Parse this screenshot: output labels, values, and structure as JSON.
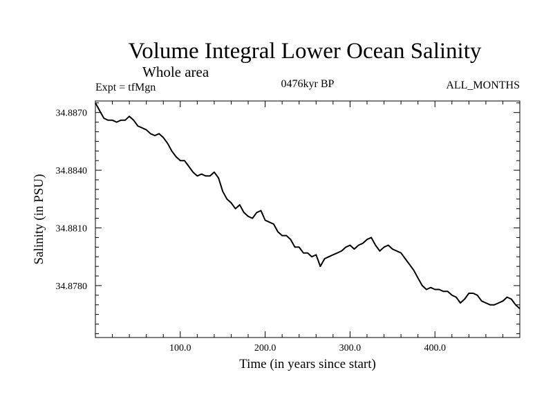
{
  "chart_data": {
    "type": "line",
    "title": "Volume Integral Lower Ocean Salinity",
    "subtitle": "Whole area",
    "annotations": {
      "left": "Expt = tfMgn",
      "center": "0476kyr BP",
      "right": "ALL_MONTHS"
    },
    "xlabel": "Time (in years since start)",
    "ylabel": "Salinity (in PSU)",
    "xlim": [
      0,
      500
    ],
    "ylim": [
      34.8753,
      34.8876
    ],
    "xticks": [
      {
        "value": 100,
        "label": "100.0"
      },
      {
        "value": 200,
        "label": "200.0"
      },
      {
        "value": 300,
        "label": "300.0"
      },
      {
        "value": 400,
        "label": "400.0"
      }
    ],
    "yticks": [
      {
        "value": 34.887,
        "label": "34.8870"
      },
      {
        "value": 34.884,
        "label": "34.8840"
      },
      {
        "value": 34.881,
        "label": "34.8810"
      },
      {
        "value": 34.878,
        "label": "34.8780"
      }
    ],
    "grid": false,
    "legend": "none",
    "line_color": "#000000",
    "series": [
      {
        "x": [
          0,
          5,
          10,
          15,
          20,
          25,
          30,
          35,
          40,
          45,
          50,
          55,
          60,
          65,
          70,
          75,
          80,
          85,
          90,
          95,
          100,
          105,
          110,
          115,
          120,
          125,
          130,
          135,
          140,
          145,
          150,
          155,
          160,
          165,
          170,
          175,
          180,
          185,
          190,
          195,
          200,
          205,
          210,
          215,
          220,
          225,
          230,
          235,
          240,
          245,
          250,
          255,
          260,
          265,
          270,
          275,
          280,
          285,
          290,
          295,
          300,
          305,
          310,
          315,
          320,
          325,
          330,
          335,
          340,
          345,
          350,
          355,
          360,
          365,
          370,
          375,
          380,
          385,
          390,
          395,
          400,
          405,
          410,
          415,
          420,
          425,
          430,
          435,
          440,
          445,
          450,
          455,
          460,
          465,
          470,
          475,
          480,
          485,
          490,
          495,
          500
        ],
        "values": [
          34.8875,
          34.8871,
          34.8867,
          34.8866,
          34.8866,
          34.8865,
          34.8866,
          34.8866,
          34.8868,
          34.8866,
          34.8863,
          34.8862,
          34.8861,
          34.8859,
          34.8858,
          34.8859,
          34.8857,
          34.8854,
          34.885,
          34.8847,
          34.8845,
          34.8845,
          34.8842,
          34.8839,
          34.8837,
          34.8838,
          34.8837,
          34.8837,
          34.8839,
          34.8836,
          34.8829,
          34.8825,
          34.8823,
          34.882,
          34.8822,
          34.8818,
          34.8816,
          34.8815,
          34.8818,
          34.8819,
          34.8814,
          34.8813,
          34.8812,
          34.8808,
          34.8806,
          34.8806,
          34.8804,
          34.88,
          34.88,
          34.8797,
          34.8797,
          34.8795,
          34.8796,
          34.879,
          34.8794,
          34.8795,
          34.8796,
          34.8797,
          34.8798,
          34.88,
          34.8801,
          34.8799,
          34.8801,
          34.8802,
          34.8804,
          34.8805,
          34.8801,
          34.8798,
          34.88,
          34.8801,
          34.8799,
          34.8798,
          34.8797,
          34.8794,
          34.8791,
          34.8788,
          34.8784,
          34.878,
          34.8778,
          34.8779,
          34.8778,
          34.8778,
          34.8777,
          34.8777,
          34.8775,
          34.8774,
          34.8771,
          34.8773,
          34.8776,
          34.8776,
          34.8775,
          34.8772,
          34.8771,
          34.877,
          34.877,
          34.8771,
          34.8772,
          34.8774,
          34.8773,
          34.877,
          34.8768
        ]
      }
    ]
  }
}
